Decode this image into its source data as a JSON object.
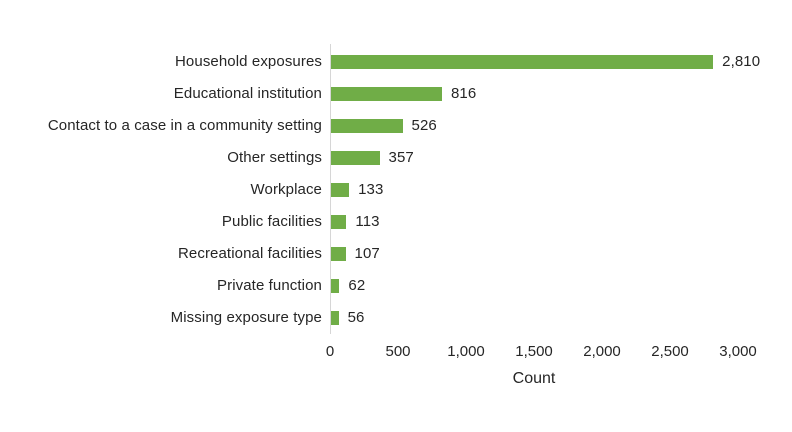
{
  "chart_data": {
    "type": "bar",
    "orientation": "horizontal",
    "title": "",
    "categories": [
      "Household exposures",
      "Educational institution",
      "Contact to a case in a community setting",
      "Other settings",
      "Workplace",
      "Public facilities",
      "Recreational facilities",
      "Private function",
      "Missing exposure type"
    ],
    "values": [
      2810,
      816,
      526,
      357,
      133,
      113,
      107,
      62,
      56
    ],
    "value_labels": [
      "2,810",
      "816",
      "526",
      "357",
      "133",
      "113",
      "107",
      "62",
      "56"
    ],
    "xlabel": "Count",
    "ylabel": "",
    "xlim": [
      0,
      3000
    ],
    "xticks": [
      0,
      500,
      1000,
      1500,
      2000,
      2500,
      3000
    ],
    "xtick_labels": [
      "0",
      "500",
      "1,000",
      "1,500",
      "2,000",
      "2,500",
      "3,000"
    ],
    "grid": false,
    "legend": false,
    "colors": {
      "bar": "#70AD47",
      "axis_line": "#D6D6D6",
      "text": "#262626"
    }
  }
}
